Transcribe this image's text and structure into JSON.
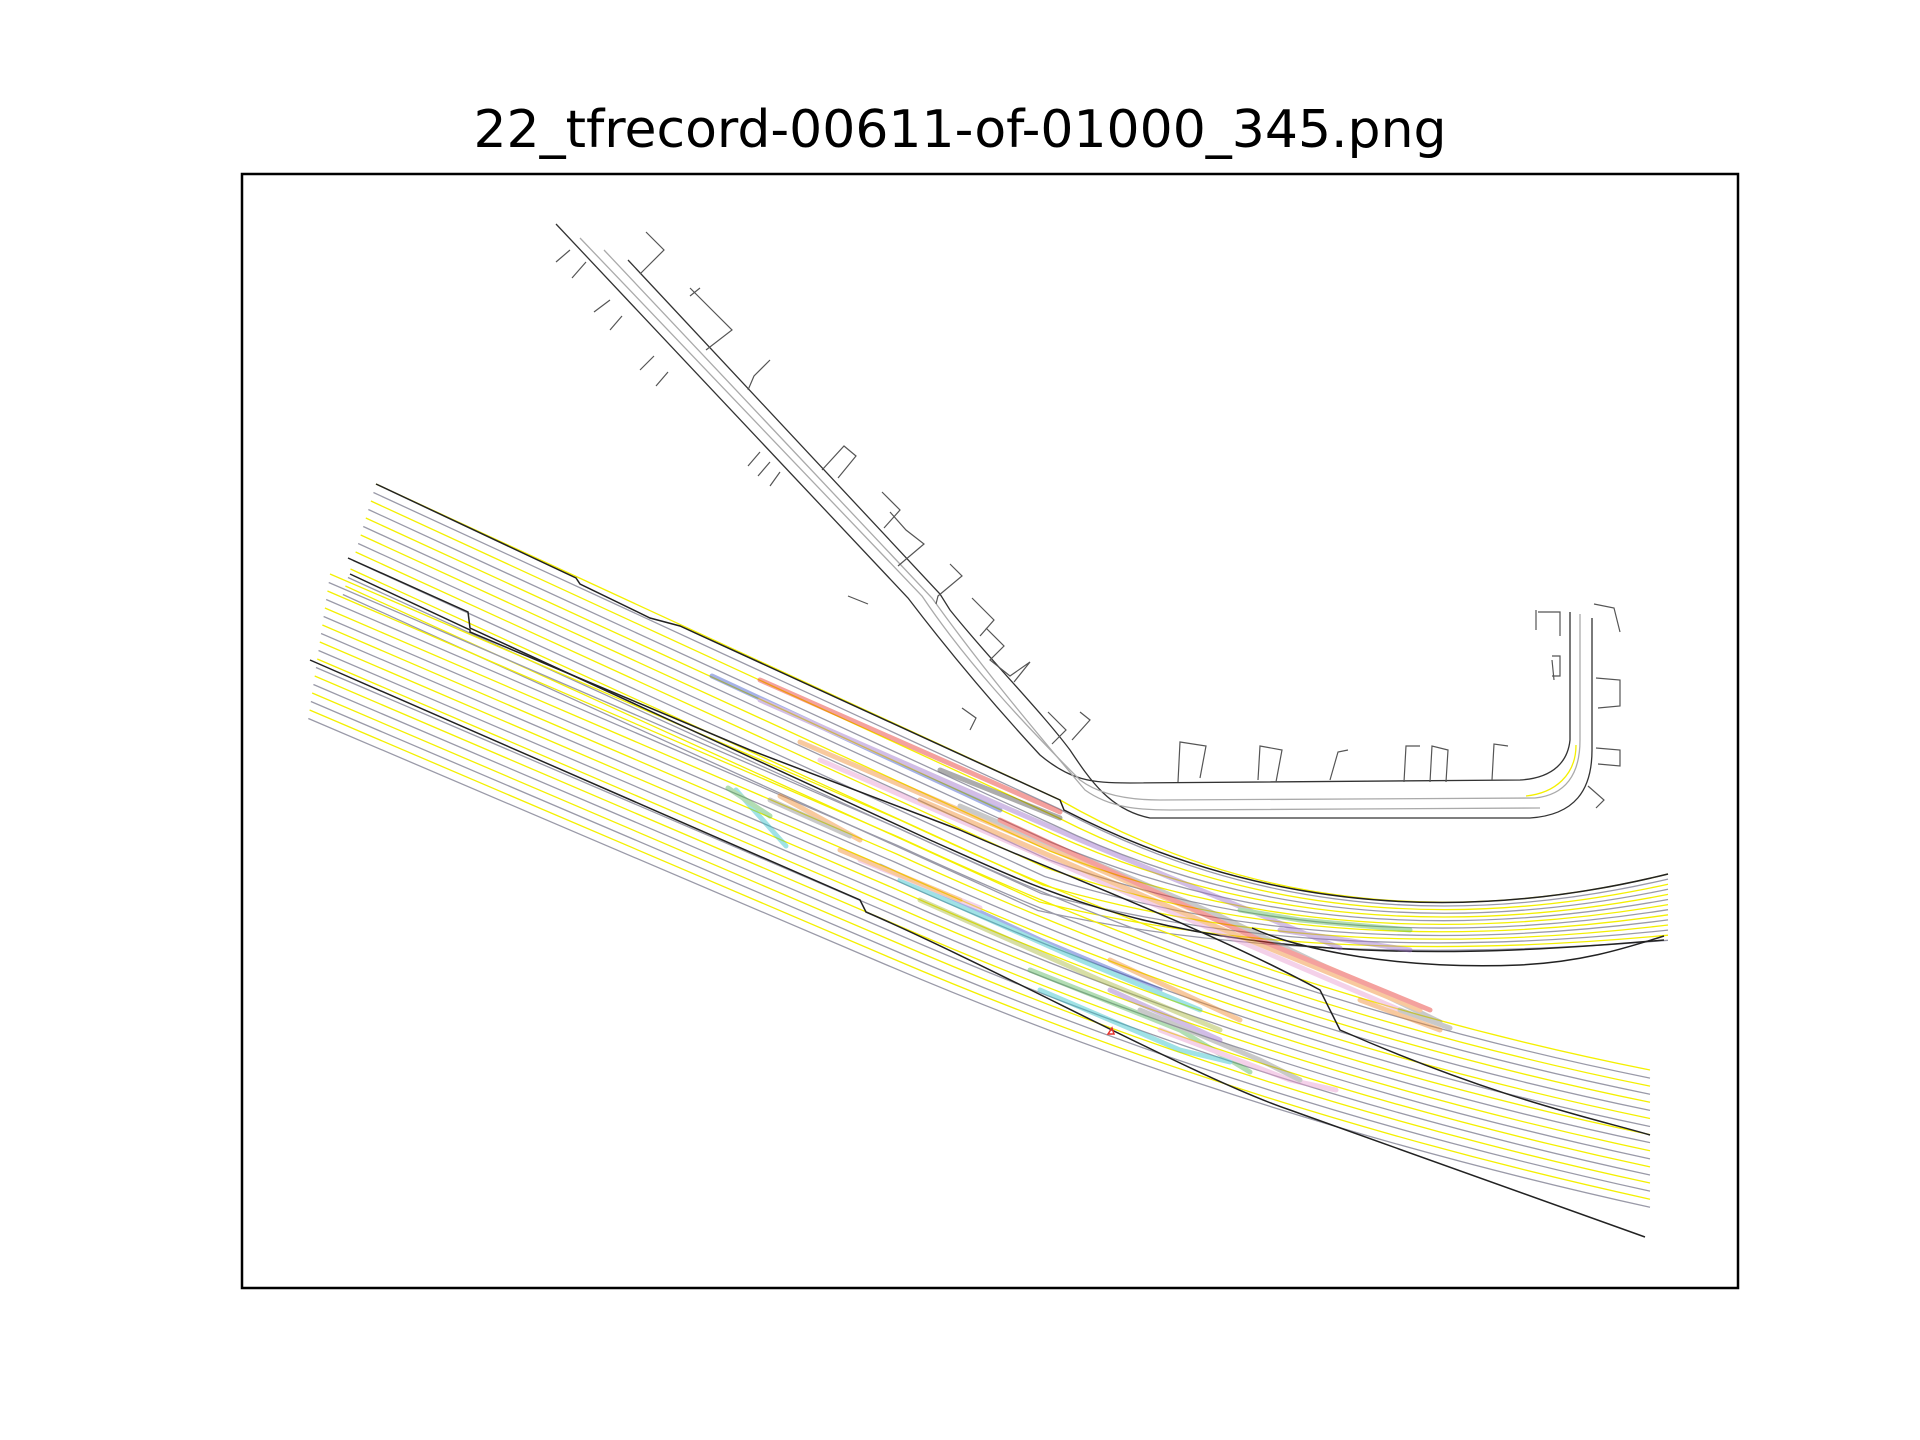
{
  "figure": {
    "title": "22_tfrecord-00611-of-01000_345.png"
  },
  "map": {
    "colors": {
      "road_edge": "#222222",
      "lane_center": "#a8a8a8",
      "lane_boundary_yellow": "#f4f000",
      "lane_boundary_grey": "#9a9aa8",
      "parking": "#555555",
      "trajectories": [
        "#e8312a",
        "#3a55c8",
        "#f08a2a",
        "#9b6fc8",
        "#57b85a",
        "#2fc0c8",
        "#e89ad0",
        "#8a8a8a",
        "#a8b83a",
        "#4a4a4a"
      ]
    },
    "axes_ticks": "off",
    "grid": "off"
  }
}
